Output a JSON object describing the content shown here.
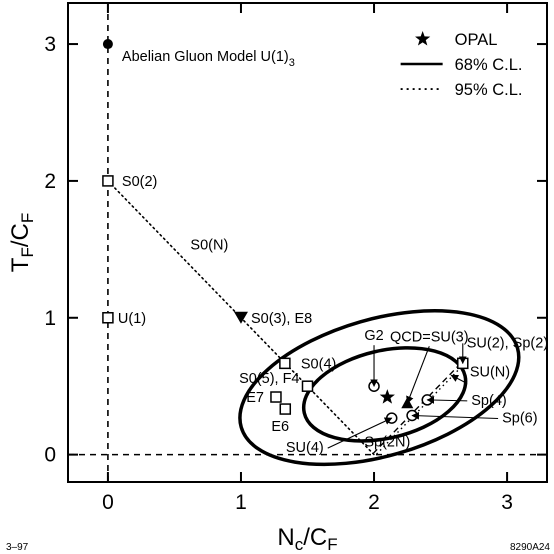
{
  "chart_data": {
    "type": "scatter",
    "xlim": [
      -0.3,
      3.3
    ],
    "ylim": [
      -0.2,
      3.3
    ],
    "grid": false,
    "x_ticks": [
      "0",
      "1",
      "2",
      "3"
    ],
    "y_ticks": [
      "0",
      "1",
      "2",
      "3"
    ],
    "xlabel": {
      "base": "N",
      "sub": "c",
      "rest": "/C",
      "sub2": "F"
    },
    "ylabel": {
      "base": "T",
      "sub": "F",
      "rest": "/C",
      "sub2": "F"
    },
    "footer_left": "3–97",
    "footer_right": "8290A24",
    "legend": {
      "placement": "top-right",
      "entries": [
        {
          "label": "OPAL",
          "symbol": "star"
        },
        {
          "label": "68% C.L.",
          "symbol": "solid-line"
        },
        {
          "label": "95% C.L.",
          "symbol": "dotted-line"
        }
      ]
    },
    "opal_point": {
      "x": 2.1,
      "y": 0.42
    },
    "contours": [
      {
        "name": "68% C.L.",
        "cx": 2.08,
        "cy": 0.44,
        "rx": 0.62,
        "ry": 0.32,
        "angle_deg": -13
      },
      {
        "name": "95% C.L.",
        "cx": 2.04,
        "cy": 0.49,
        "rx": 1.08,
        "ry": 0.5,
        "angle_deg": -16
      }
    ],
    "son_line": {
      "label": "S0(N)",
      "from": [
        0,
        2
      ],
      "to": [
        2.0,
        0
      ]
    },
    "reference_lines": {
      "vertical_x": 0,
      "horizontal_y": 0
    },
    "points": [
      {
        "x": 0,
        "y": 3,
        "marker": "filled-circle",
        "label": "Abelian Gluon Model U(1)",
        "label_sub": "3"
      },
      {
        "x": 0,
        "y": 2,
        "marker": "square",
        "label": "S0(2)"
      },
      {
        "x": 0,
        "y": 1,
        "marker": "square",
        "label": "U(1)"
      },
      {
        "x": 1.0,
        "y": 1.0,
        "marker": "filled-triangle-down",
        "label": "S0(3), E8"
      },
      {
        "x": 1.33,
        "y": 0.667,
        "marker": "square",
        "label": "S0(4)"
      },
      {
        "x": 1.5,
        "y": 0.5,
        "marker": "square",
        "label": "S0(5), F4"
      },
      {
        "x": 1.263,
        "y": 0.421,
        "marker": "square",
        "label": "E7"
      },
      {
        "x": 1.333,
        "y": 0.333,
        "marker": "square",
        "label": "E6"
      },
      {
        "x": 2.0,
        "y": 0.5,
        "marker": "circle",
        "label": "G2"
      },
      {
        "x": 2.25,
        "y": 0.375,
        "marker": "filled-triangle-up",
        "label": "QCD=SU(3)"
      },
      {
        "x": 2.667,
        "y": 0.667,
        "marker": "square",
        "label": "SU(2), Sp(2)"
      },
      {
        "x": 2.4,
        "y": 0.4,
        "marker": "circle",
        "label": "Sp(4)"
      },
      {
        "x": 2.286,
        "y": 0.286,
        "marker": "circle",
        "label": "Sp(6)"
      },
      {
        "x": 2.133,
        "y": 0.267,
        "marker": "circle",
        "label": "SU(4)"
      }
    ],
    "series_lines": [
      {
        "label": "SU(N)",
        "from": [
          2.667,
          0.667
        ],
        "to": [
          2.0,
          0
        ]
      },
      {
        "label": "Sp(2N)",
        "from": [
          2.667,
          0.667
        ],
        "to": [
          2.0,
          0
        ]
      }
    ]
  }
}
